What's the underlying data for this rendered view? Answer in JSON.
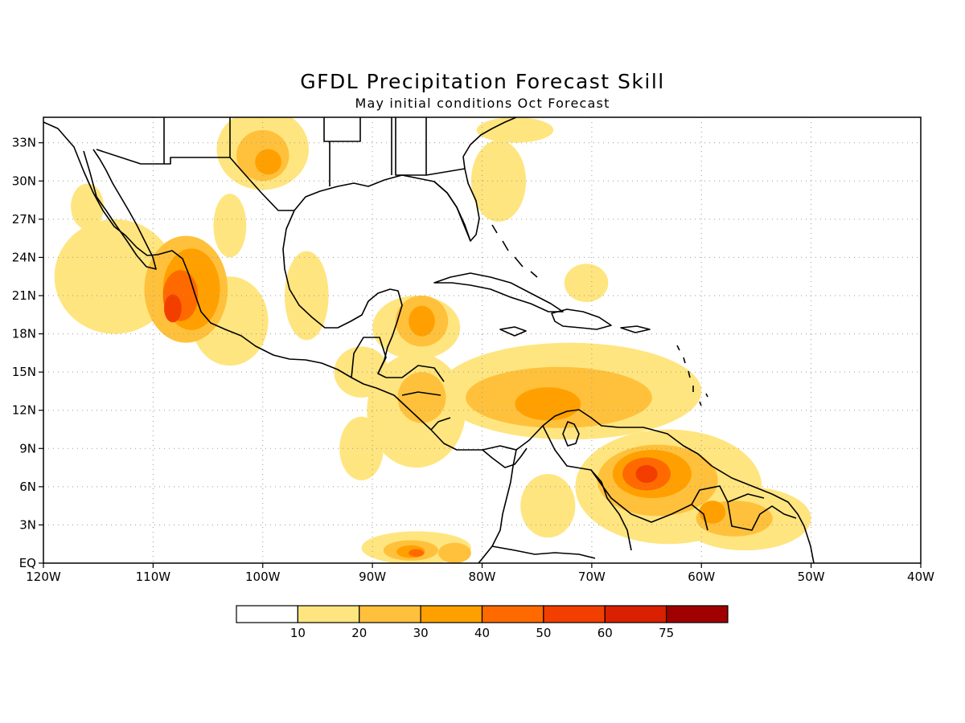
{
  "title": "GFDL Precipitation Forecast Skill",
  "subtitle": "May initial conditions  Oct Forecast",
  "map": {
    "projection": "equirectangular",
    "lon_range": [
      -120,
      -40
    ],
    "lat_range": [
      0,
      35
    ]
  },
  "axes": {
    "x_ticks": [
      {
        "lon": -120,
        "label": "120W"
      },
      {
        "lon": -110,
        "label": "110W"
      },
      {
        "lon": -100,
        "label": "100W"
      },
      {
        "lon": -90,
        "label": "90W"
      },
      {
        "lon": -80,
        "label": "80W"
      },
      {
        "lon": -70,
        "label": "70W"
      },
      {
        "lon": -60,
        "label": "60W"
      },
      {
        "lon": -50,
        "label": "50W"
      },
      {
        "lon": -40,
        "label": "40W"
      }
    ],
    "y_ticks": [
      {
        "lat": 0,
        "label": "EQ"
      },
      {
        "lat": 3,
        "label": "3N"
      },
      {
        "lat": 6,
        "label": "6N"
      },
      {
        "lat": 9,
        "label": "9N"
      },
      {
        "lat": 12,
        "label": "12N"
      },
      {
        "lat": 15,
        "label": "15N"
      },
      {
        "lat": 18,
        "label": "18N"
      },
      {
        "lat": 21,
        "label": "21N"
      },
      {
        "lat": 24,
        "label": "24N"
      },
      {
        "lat": 27,
        "label": "27N"
      },
      {
        "lat": 30,
        "label": "30N"
      },
      {
        "lat": 33,
        "label": "33N"
      }
    ],
    "grid": "dotted"
  },
  "colorbar": {
    "colors": [
      "#ffffff",
      "#ffe57f",
      "#ffc13c",
      "#ffa000",
      "#ff6a00",
      "#f23f00",
      "#d92000",
      "#a00000"
    ],
    "labels": [
      "10",
      "20",
      "30",
      "40",
      "50",
      "60",
      "75"
    ]
  },
  "skill_regions": [
    {
      "level": 1,
      "lon": -113.5,
      "lat": 22.5,
      "rx": 5.5,
      "ry": 4.5
    },
    {
      "level": 2,
      "lon": -107,
      "lat": 21.5,
      "rx": 3.8,
      "ry": 4.2
    },
    {
      "level": 3,
      "lon": -106.5,
      "lat": 21.5,
      "rx": 2.6,
      "ry": 3.2
    },
    {
      "level": 4,
      "lon": -107.5,
      "lat": 21,
      "rx": 1.6,
      "ry": 2.0
    },
    {
      "level": 5,
      "lon": -108.2,
      "lat": 20,
      "rx": 0.8,
      "ry": 1.1
    },
    {
      "level": 1,
      "lon": -103,
      "lat": 19,
      "rx": 3.5,
      "ry": 3.5
    },
    {
      "level": 1,
      "lon": -100,
      "lat": 32.5,
      "rx": 4.2,
      "ry": 3.2
    },
    {
      "level": 2,
      "lon": -100,
      "lat": 32,
      "rx": 2.4,
      "ry": 2.0
    },
    {
      "level": 3,
      "lon": -99.5,
      "lat": 31.5,
      "rx": 1.2,
      "ry": 1.0
    },
    {
      "level": 1,
      "lon": -78.5,
      "lat": 30,
      "rx": 2.5,
      "ry": 3.2
    },
    {
      "level": 1,
      "lon": -77,
      "lat": 34,
      "rx": 3.5,
      "ry": 1.0
    },
    {
      "level": 1,
      "lon": -86,
      "lat": 18.5,
      "rx": 4.0,
      "ry": 2.5
    },
    {
      "level": 2,
      "lon": -85.5,
      "lat": 19,
      "rx": 2.4,
      "ry": 2.0
    },
    {
      "level": 3,
      "lon": -85.5,
      "lat": 19,
      "rx": 1.2,
      "ry": 1.2
    },
    {
      "level": 1,
      "lon": -72,
      "lat": 13.5,
      "rx": 12.0,
      "ry": 3.8
    },
    {
      "level": 2,
      "lon": -73,
      "lat": 13,
      "rx": 8.5,
      "ry": 2.4
    },
    {
      "level": 3,
      "lon": -74,
      "lat": 12.5,
      "rx": 3.0,
      "ry": 1.3
    },
    {
      "level": 1,
      "lon": -86,
      "lat": 12,
      "rx": 4.5,
      "ry": 4.5
    },
    {
      "level": 2,
      "lon": -85.5,
      "lat": 13,
      "rx": 2.2,
      "ry": 2.0
    },
    {
      "level": 1,
      "lon": -63,
      "lat": 6,
      "rx": 8.5,
      "ry": 4.5
    },
    {
      "level": 2,
      "lon": -64,
      "lat": 6.5,
      "rx": 5.5,
      "ry": 2.8
    },
    {
      "level": 3,
      "lon": -64.5,
      "lat": 7,
      "rx": 3.6,
      "ry": 1.9
    },
    {
      "level": 4,
      "lon": -65,
      "lat": 7,
      "rx": 2.2,
      "ry": 1.3
    },
    {
      "level": 5,
      "lon": -65,
      "lat": 7,
      "rx": 1.0,
      "ry": 0.7
    },
    {
      "level": 1,
      "lon": -56,
      "lat": 3.5,
      "rx": 6.0,
      "ry": 2.5
    },
    {
      "level": 2,
      "lon": -57,
      "lat": 3.5,
      "rx": 3.5,
      "ry": 1.4
    },
    {
      "level": 3,
      "lon": -59,
      "lat": 4,
      "rx": 1.2,
      "ry": 0.9
    },
    {
      "level": 1,
      "lon": -86,
      "lat": 1.2,
      "rx": 5.0,
      "ry": 1.3
    },
    {
      "level": 2,
      "lon": -86.5,
      "lat": 1.0,
      "rx": 2.5,
      "ry": 0.8
    },
    {
      "level": 3,
      "lon": -86.5,
      "lat": 0.9,
      "rx": 1.3,
      "ry": 0.5
    },
    {
      "level": 4,
      "lon": -86,
      "lat": 0.8,
      "rx": 0.7,
      "ry": 0.3
    },
    {
      "level": 2,
      "lon": -82.5,
      "lat": 0.8,
      "rx": 1.5,
      "ry": 0.8
    },
    {
      "level": 1,
      "lon": -91,
      "lat": 9,
      "rx": 2.0,
      "ry": 2.5
    },
    {
      "level": 1,
      "lon": -96,
      "lat": 21,
      "rx": 2.0,
      "ry": 3.5
    },
    {
      "level": 1,
      "lon": -91,
      "lat": 15,
      "rx": 2.5,
      "ry": 2.0
    },
    {
      "level": 1,
      "lon": -74,
      "lat": 4.5,
      "rx": 2.5,
      "ry": 2.5
    },
    {
      "level": 1,
      "lon": -70.5,
      "lat": 22,
      "rx": 2.0,
      "ry": 1.5
    },
    {
      "level": 1,
      "lon": -103,
      "lat": 26.5,
      "rx": 1.5,
      "ry": 2.5
    },
    {
      "level": 1,
      "lon": -116,
      "lat": 28,
      "rx": 1.5,
      "ry": 1.8
    }
  ]
}
